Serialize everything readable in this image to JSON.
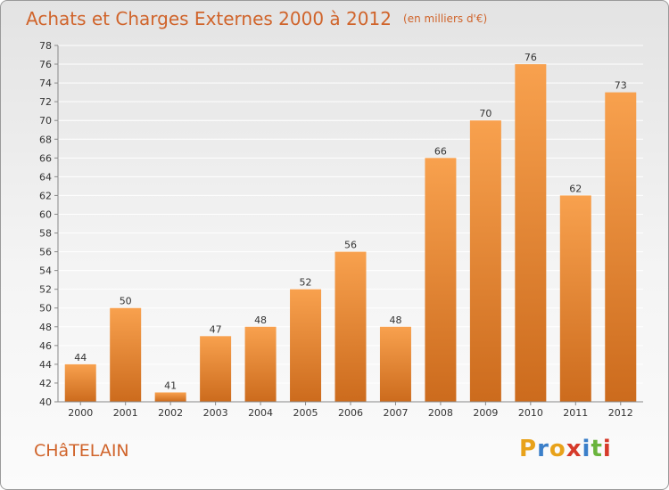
{
  "header": {
    "title": "Achats et Charges Externes 2000 à 2012",
    "unit": "(en milliers d'€)"
  },
  "footer": {
    "place": "CHâTELAIN",
    "logo": "Proxiti",
    "logo_colors": [
      "#e8a21a",
      "#3b7fc9",
      "#e8a21a",
      "#d63a2a",
      "#3b7fc9",
      "#6ab43c",
      "#d63a2a"
    ]
  },
  "colors": {
    "bar_light": "#f8a14e",
    "bar_dark": "#cc6b1d",
    "title": "#d0642b",
    "grid": "#ffffff",
    "axis": "#888888"
  },
  "chart_data": {
    "type": "bar",
    "title": "Achats et Charges Externes 2000 à 2012",
    "xlabel": "",
    "ylabel": "",
    "categories": [
      "2000",
      "2001",
      "2002",
      "2003",
      "2004",
      "2005",
      "2006",
      "2007",
      "2008",
      "2009",
      "2010",
      "2011",
      "2012"
    ],
    "values": [
      44,
      50,
      41,
      47,
      48,
      52,
      56,
      48,
      66,
      70,
      76,
      62,
      73
    ],
    "ylim": [
      40,
      78
    ],
    "ytick_step": 2,
    "grid": true,
    "data_labels": true
  }
}
